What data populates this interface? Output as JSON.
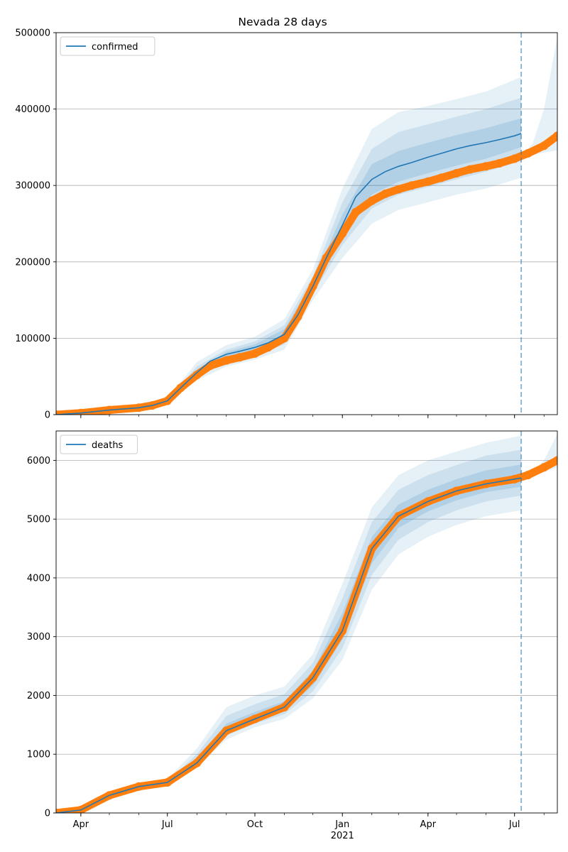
{
  "figure": {
    "title": "Nevada 28 days"
  },
  "colors": {
    "model": "#1f77b4",
    "observed": "#ff7f0e",
    "band": "#1f77b4",
    "grid": "#b0b0b0",
    "vline": "#1f77b4"
  },
  "chart_data": [
    {
      "type": "line",
      "title": "Nevada 28 days",
      "xlabel": "",
      "ylabel": "",
      "xlim": [
        "2020-03-06",
        "2021-08-15"
      ],
      "ylim": [
        0,
        500000
      ],
      "yticks": [
        0,
        100000,
        200000,
        300000,
        400000,
        500000
      ],
      "grid": "horizontal",
      "legend": {
        "placement": "upper-left",
        "entries": [
          "confirmed"
        ]
      },
      "forecast_start": "2021-07-08",
      "series": [
        {
          "name": "confirmed",
          "kind": "model-median",
          "x": [
            "2020-03-06",
            "2020-04-01",
            "2020-05-01",
            "2020-06-01",
            "2020-06-15",
            "2020-07-01",
            "2020-07-15",
            "2020-08-01",
            "2020-08-15",
            "2020-09-01",
            "2020-09-15",
            "2020-10-01",
            "2020-10-15",
            "2020-11-01",
            "2020-11-15",
            "2020-12-01",
            "2020-12-15",
            "2021-01-01",
            "2021-01-15",
            "2021-02-01",
            "2021-02-15",
            "2021-03-01",
            "2021-03-15",
            "2021-04-01",
            "2021-04-15",
            "2021-05-01",
            "2021-05-15",
            "2021-06-01",
            "2021-06-15",
            "2021-07-01",
            "2021-07-08"
          ],
          "values": [
            0,
            2000,
            6000,
            9000,
            12000,
            18000,
            35000,
            55000,
            70000,
            79000,
            83000,
            88000,
            94000,
            105000,
            130000,
            168000,
            205000,
            248000,
            285000,
            308000,
            318000,
            325000,
            330000,
            337000,
            342000,
            348000,
            352000,
            356000,
            360000,
            365000,
            368000
          ]
        },
        {
          "name": "observed confirmed",
          "kind": "observed",
          "x": [
            "2020-03-06",
            "2020-04-01",
            "2020-05-01",
            "2020-06-01",
            "2020-06-15",
            "2020-07-01",
            "2020-07-15",
            "2020-08-01",
            "2020-08-15",
            "2020-09-01",
            "2020-09-15",
            "2020-10-01",
            "2020-10-15",
            "2020-11-01",
            "2020-11-15",
            "2020-12-01",
            "2020-12-15",
            "2021-01-01",
            "2021-01-15",
            "2021-02-01",
            "2021-02-15",
            "2021-03-01",
            "2021-03-15",
            "2021-04-01",
            "2021-04-15",
            "2021-05-01",
            "2021-05-15",
            "2021-06-01",
            "2021-06-15",
            "2021-07-01",
            "2021-07-15",
            "2021-08-01",
            "2021-08-15"
          ],
          "values": [
            0,
            2000,
            6000,
            9000,
            12000,
            18000,
            35000,
            52000,
            64000,
            71000,
            75000,
            80000,
            88000,
            100000,
            128000,
            168000,
            205000,
            237000,
            265000,
            280000,
            289000,
            295000,
            300000,
            305000,
            310000,
            316000,
            321000,
            325000,
            329000,
            335000,
            342000,
            352000,
            365000
          ]
        }
      ],
      "bands": [
        {
          "level": "outer",
          "x": [
            "2020-06-01",
            "2020-07-01",
            "2020-08-01",
            "2020-09-01",
            "2020-10-01",
            "2020-11-01",
            "2020-12-01",
            "2021-01-01",
            "2021-02-01",
            "2021-03-01",
            "2021-04-01",
            "2021-05-01",
            "2021-06-01",
            "2021-07-08"
          ],
          "low": [
            8000,
            16000,
            45000,
            63000,
            72000,
            85000,
            150000,
            205000,
            250000,
            268000,
            278000,
            288000,
            296000,
            310000
          ],
          "high": [
            10000,
            21000,
            69000,
            91000,
            102000,
            125000,
            190000,
            296000,
            374000,
            396000,
            404000,
            413000,
            423000,
            442000
          ]
        },
        {
          "level": "middle",
          "x": [
            "2020-06-01",
            "2020-07-01",
            "2020-08-01",
            "2020-09-01",
            "2020-10-01",
            "2020-11-01",
            "2020-12-01",
            "2021-01-01",
            "2021-02-01",
            "2021-03-01",
            "2021-04-01",
            "2021-05-01",
            "2021-06-01",
            "2021-07-08"
          ],
          "low": [
            8500,
            17000,
            49000,
            69000,
            78000,
            92000,
            158000,
            222000,
            270000,
            288000,
            298000,
            308000,
            318000,
            332000
          ],
          "high": [
            9600,
            20000,
            63000,
            85000,
            96000,
            117000,
            181000,
            278000,
            348000,
            370000,
            380000,
            390000,
            400000,
            415000
          ]
        },
        {
          "level": "inner",
          "x": [
            "2020-06-01",
            "2020-07-01",
            "2020-08-01",
            "2020-09-01",
            "2020-10-01",
            "2020-11-01",
            "2020-12-01",
            "2021-01-01",
            "2021-02-01",
            "2021-03-01",
            "2021-04-01",
            "2021-05-01",
            "2021-06-01",
            "2021-07-08"
          ],
          "low": [
            8800,
            17500,
            52000,
            73000,
            83000,
            98000,
            164000,
            236000,
            288000,
            305000,
            316000,
            326000,
            335000,
            350000
          ],
          "high": [
            9300,
            19000,
            59000,
            82000,
            92000,
            112000,
            174000,
            262000,
            328000,
            345000,
            356000,
            366000,
            375000,
            388000
          ]
        },
        {
          "level": "observed-forecast",
          "x": [
            "2021-07-08",
            "2021-07-20",
            "2021-08-01",
            "2021-08-15"
          ],
          "low": [
            337000,
            340000,
            343000,
            346000
          ],
          "high": [
            337000,
            355000,
            400000,
            495000
          ]
        }
      ],
      "xticks": [
        {
          "date": "2020-04-01",
          "label": "Apr"
        },
        {
          "date": "2020-07-01",
          "label": "Jul"
        },
        {
          "date": "2020-10-01",
          "label": "Oct"
        },
        {
          "date": "2021-01-01",
          "label": "Jan"
        },
        {
          "date": "2021-04-01",
          "label": "Apr"
        },
        {
          "date": "2021-07-01",
          "label": "Jul"
        }
      ],
      "show_xtick_labels": false
    },
    {
      "type": "line",
      "title": "",
      "xlabel": "",
      "ylabel": "",
      "xlim": [
        "2020-03-06",
        "2021-08-15"
      ],
      "ylim": [
        0,
        6500
      ],
      "yticks": [
        0,
        1000,
        2000,
        3000,
        4000,
        5000,
        6000
      ],
      "grid": "horizontal",
      "legend": {
        "placement": "upper-left",
        "entries": [
          "deaths"
        ]
      },
      "forecast_start": "2021-07-08",
      "series": [
        {
          "name": "deaths",
          "kind": "model-median",
          "x": [
            "2020-03-06",
            "2020-04-01",
            "2020-05-01",
            "2020-06-01",
            "2020-07-01",
            "2020-08-01",
            "2020-09-01",
            "2020-10-01",
            "2020-11-01",
            "2020-12-01",
            "2021-01-01",
            "2021-02-01",
            "2021-03-01",
            "2021-04-01",
            "2021-05-01",
            "2021-06-01",
            "2021-07-08"
          ],
          "values": [
            0,
            50,
            300,
            450,
            520,
            850,
            1400,
            1600,
            1800,
            2300,
            3100,
            4500,
            5050,
            5300,
            5480,
            5600,
            5700
          ]
        },
        {
          "name": "observed deaths",
          "kind": "observed",
          "x": [
            "2020-03-06",
            "2020-04-01",
            "2020-05-01",
            "2020-06-01",
            "2020-07-01",
            "2020-08-01",
            "2020-09-01",
            "2020-10-01",
            "2020-11-01",
            "2020-12-01",
            "2021-01-01",
            "2021-02-01",
            "2021-03-01",
            "2021-04-01",
            "2021-05-01",
            "2021-06-01",
            "2021-07-01",
            "2021-07-15",
            "2021-08-01",
            "2021-08-15"
          ],
          "values": [
            0,
            50,
            300,
            450,
            520,
            850,
            1400,
            1600,
            1800,
            2300,
            3100,
            4500,
            5050,
            5300,
            5480,
            5600,
            5680,
            5750,
            5880,
            6000
          ]
        }
      ],
      "bands": [
        {
          "level": "outer",
          "x": [
            "2020-06-01",
            "2020-07-01",
            "2020-08-01",
            "2020-09-01",
            "2020-10-01",
            "2020-11-01",
            "2020-12-01",
            "2021-01-01",
            "2021-02-01",
            "2021-03-01",
            "2021-04-01",
            "2021-05-01",
            "2021-06-01",
            "2021-07-08"
          ],
          "low": [
            430,
            500,
            780,
            1250,
            1460,
            1600,
            1950,
            2600,
            3800,
            4400,
            4700,
            4900,
            5050,
            5150
          ],
          "high": [
            470,
            570,
            1100,
            1800,
            2000,
            2150,
            2700,
            3900,
            5200,
            5750,
            6000,
            6150,
            6300,
            6420
          ]
        },
        {
          "level": "middle",
          "x": [
            "2020-06-01",
            "2020-07-01",
            "2020-08-01",
            "2020-09-01",
            "2020-10-01",
            "2020-11-01",
            "2020-12-01",
            "2021-01-01",
            "2021-02-01",
            "2021-03-01",
            "2021-04-01",
            "2021-05-01",
            "2021-06-01",
            "2021-07-08"
          ],
          "low": [
            440,
            510,
            820,
            1320,
            1520,
            1680,
            2070,
            2800,
            4050,
            4650,
            4950,
            5150,
            5300,
            5400
          ],
          "high": [
            460,
            545,
            1000,
            1650,
            1850,
            2020,
            2550,
            3650,
            4950,
            5500,
            5750,
            5920,
            6080,
            6180
          ]
        },
        {
          "level": "inner",
          "x": [
            "2020-06-01",
            "2020-07-01",
            "2020-08-01",
            "2020-09-01",
            "2020-10-01",
            "2020-11-01",
            "2020-12-01",
            "2021-01-01",
            "2021-02-01",
            "2021-03-01",
            "2021-04-01",
            "2021-05-01",
            "2021-06-01",
            "2021-07-08"
          ],
          "low": [
            445,
            515,
            840,
            1370,
            1570,
            1740,
            2170,
            2950,
            4250,
            4850,
            5130,
            5320,
            5460,
            5550
          ],
          "high": [
            455,
            530,
            930,
            1520,
            1720,
            1900,
            2420,
            3400,
            4700,
            5250,
            5500,
            5680,
            5830,
            5930
          ]
        },
        {
          "level": "observed-forecast",
          "x": [
            "2021-07-08",
            "2021-07-20",
            "2021-08-01",
            "2021-08-15"
          ],
          "low": [
            5700,
            5730,
            5800,
            5880
          ],
          "high": [
            5700,
            5800,
            6000,
            6450
          ]
        }
      ],
      "xticks": [
        {
          "date": "2020-04-01",
          "label": "Apr"
        },
        {
          "date": "2020-07-01",
          "label": "Jul"
        },
        {
          "date": "2020-10-01",
          "label": "Oct"
        },
        {
          "date": "2021-01-01",
          "label": "Jan"
        },
        {
          "date": "2021-04-01",
          "label": "Apr"
        },
        {
          "date": "2021-07-01",
          "label": "Jul"
        }
      ],
      "year_label": {
        "date": "2021-01-01",
        "label": "2021"
      },
      "show_xtick_labels": true
    }
  ]
}
